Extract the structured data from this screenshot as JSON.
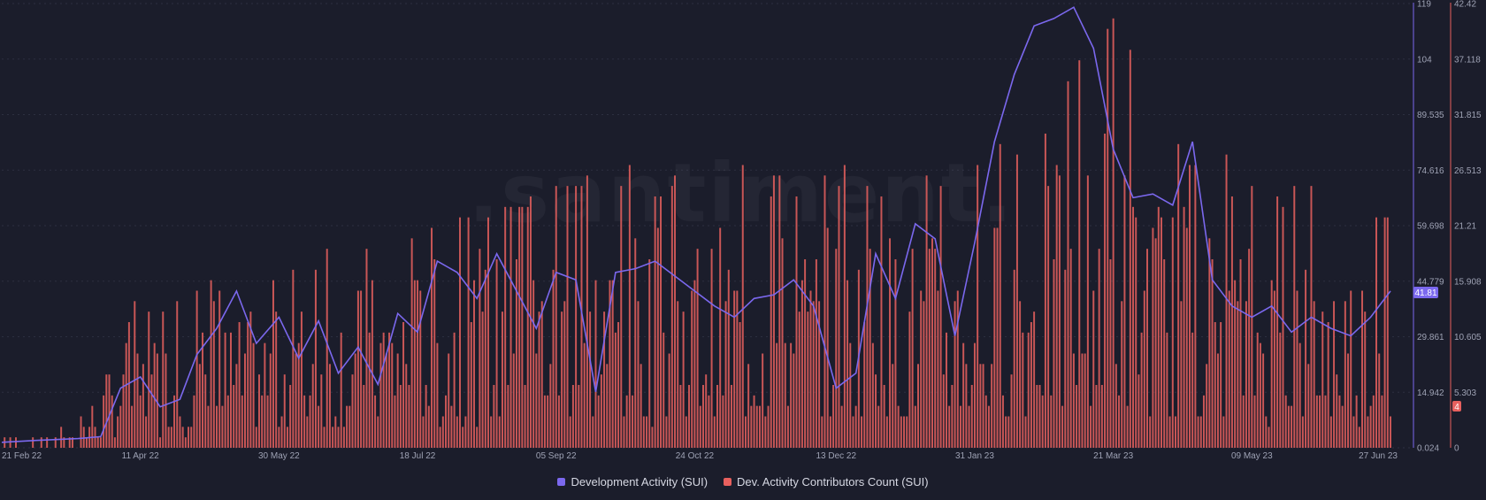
{
  "chart_data": {
    "type": "bar+line",
    "watermark": ".santiment.",
    "x_ticks": [
      "21 Feb 22",
      "11 Apr 22",
      "30 May 22",
      "18 Jul 22",
      "05 Sep 22",
      "24 Oct 22",
      "13 Dec 22",
      "31 Jan 23",
      "21 Mar 23",
      "09 May 23",
      "27 Jun 23"
    ],
    "left_axis": {
      "ticks": [
        "119",
        "104",
        "89.535",
        "74.616",
        "59.698",
        "44.779",
        "29.861",
        "14.942",
        "0.024"
      ],
      "min": 0.024,
      "max": 119
    },
    "right_axis": {
      "ticks": [
        "42.42",
        "37.118",
        "31.815",
        "26.513",
        "21.21",
        "15.908",
        "10.605",
        "5.303",
        "0"
      ],
      "min": 0,
      "max": 42.42
    },
    "current_values": {
      "line": "41.81",
      "bars": "4"
    },
    "colors": {
      "line": "#7b68ee",
      "bars": "#e8605e",
      "line_badge": "#7b68ee",
      "bar_badge": "#e8605e"
    },
    "series": [
      {
        "name": "Development Activity (SUI)",
        "kind": "line",
        "axis": "left",
        "x": [
          "21 Feb 22",
          "05 Mar 22",
          "20 Mar 22",
          "28 Mar 22",
          "04 Apr 22",
          "11 Apr 22",
          "18 Apr 22",
          "25 Apr 22",
          "01 May 22",
          "08 May 22",
          "15 May 22",
          "22 May 22",
          "30 May 22",
          "06 Jun 22",
          "13 Jun 22",
          "20 Jun 22",
          "27 Jun 22",
          "04 Jul 22",
          "11 Jul 22",
          "18 Jul 22",
          "25 Jul 22",
          "01 Aug 22",
          "08 Aug 22",
          "15 Aug 22",
          "22 Aug 22",
          "29 Aug 22",
          "05 Sep 22",
          "12 Sep 22",
          "19 Sep 22",
          "26 Sep 22",
          "03 Oct 22",
          "10 Oct 22",
          "17 Oct 22",
          "24 Oct 22",
          "31 Oct 22",
          "07 Nov 22",
          "14 Nov 22",
          "21 Nov 22",
          "28 Nov 22",
          "05 Dec 22",
          "13 Dec 22",
          "20 Dec 22",
          "27 Dec 22",
          "03 Jan 23",
          "10 Jan 23",
          "17 Jan 23",
          "24 Jan 23",
          "31 Jan 23",
          "07 Feb 23",
          "14 Feb 23",
          "21 Feb 23",
          "28 Feb 23",
          "07 Mar 23",
          "14 Mar 23",
          "21 Mar 23",
          "28 Mar 23",
          "04 Apr 23",
          "11 Apr 23",
          "18 Apr 23",
          "25 Apr 23",
          "02 May 23",
          "09 May 23",
          "16 May 23",
          "23 May 23",
          "30 May 23",
          "06 Jun 23",
          "13 Jun 23",
          "20 Jun 23",
          "27 Jun 23"
        ],
        "values": [
          1.5,
          2,
          2.5,
          3,
          16,
          19,
          11,
          13,
          25,
          32,
          42,
          28,
          35,
          24,
          34,
          20,
          27,
          17,
          36,
          31,
          50,
          47,
          40,
          52,
          42,
          32,
          47,
          45,
          15,
          47,
          48,
          50,
          46,
          42,
          38,
          35,
          40,
          41,
          45,
          38,
          16,
          20,
          52,
          40,
          60,
          56,
          30,
          55,
          82,
          100,
          113,
          115,
          118,
          107,
          80,
          67,
          68,
          65,
          82,
          45,
          38,
          35,
          38,
          31,
          35,
          32,
          30,
          35,
          42
        ]
      },
      {
        "name": "Dev. Activity Contributors Count (SUI)",
        "kind": "bar",
        "axis": "right",
        "envelope_x": [
          "21 Feb 22",
          "20 Mar 22",
          "04 Apr 22",
          "11 Apr 22",
          "30 May 22",
          "18 Jul 22",
          "05 Sep 22",
          "24 Oct 22",
          "13 Dec 22",
          "31 Jan 23",
          "07 Mar 23",
          "21 Mar 23",
          "04 Apr 23",
          "09 May 23",
          "27 Jun 23"
        ],
        "envelope_max": [
          1,
          2,
          12,
          13,
          16,
          21,
          24,
          25,
          25,
          25,
          33,
          39,
          30,
          24,
          22
        ]
      }
    ]
  }
}
